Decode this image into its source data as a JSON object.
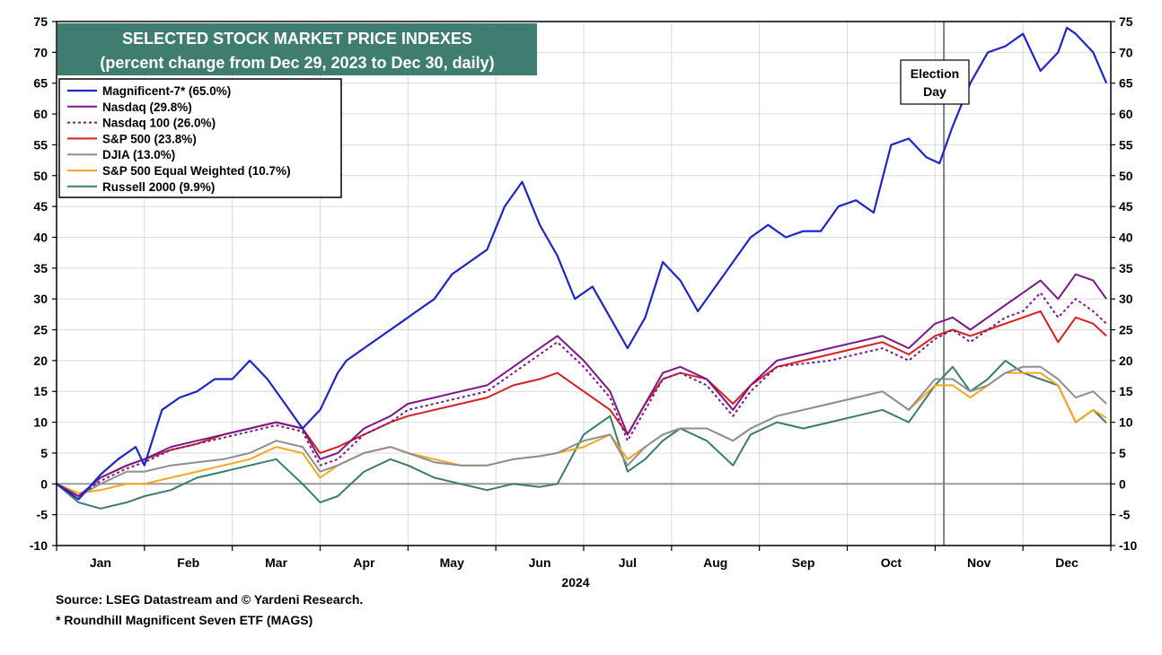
{
  "chart_data": {
    "type": "line",
    "title": "SELECTED STOCK MARKET PRICE INDEXES",
    "subtitle": "(percent change from Dec 29, 2023 to Dec 30, daily)",
    "xlabel": "2024",
    "ylabel": "",
    "ylim": [
      -10,
      75
    ],
    "yticks": [
      -10,
      -5,
      0,
      5,
      10,
      15,
      20,
      25,
      30,
      35,
      40,
      45,
      50,
      55,
      60,
      65,
      70,
      75
    ],
    "months": [
      "Jan",
      "Feb",
      "Mar",
      "Apr",
      "May",
      "Jun",
      "Jul",
      "Aug",
      "Sep",
      "Oct",
      "Nov",
      "Dec"
    ],
    "xdomain": [
      0,
      12
    ],
    "annotation": {
      "label_line1": "Election",
      "label_line2": "Day",
      "x": 10.1
    },
    "colors": {
      "title_bg": "#3f7d70",
      "grid": "#d9d9d9",
      "zero_line": "#9a9a9a",
      "election_line": "#808080"
    },
    "series": [
      {
        "name": "Magnificent-7* (65.0%)",
        "color": "#1f26c9",
        "width": 2.2,
        "dash": "",
        "x": [
          0,
          0.25,
          0.5,
          0.7,
          0.9,
          1.0,
          1.2,
          1.4,
          1.6,
          1.8,
          2.0,
          2.2,
          2.4,
          2.6,
          2.8,
          3.0,
          3.2,
          3.3,
          3.5,
          3.7,
          3.9,
          4.1,
          4.3,
          4.5,
          4.7,
          4.9,
          5.1,
          5.3,
          5.5,
          5.7,
          5.9,
          6.1,
          6.3,
          6.5,
          6.7,
          6.9,
          7.1,
          7.3,
          7.5,
          7.7,
          7.9,
          8.1,
          8.3,
          8.5,
          8.7,
          8.9,
          9.1,
          9.3,
          9.5,
          9.7,
          9.9,
          10.05,
          10.2,
          10.4,
          10.6,
          10.8,
          11.0,
          11.2,
          11.4,
          11.5,
          11.6,
          11.8,
          11.95
        ],
        "values": [
          0,
          -2.5,
          1.5,
          4,
          6,
          3,
          12,
          14,
          15,
          17,
          17,
          20,
          17,
          13,
          9,
          12,
          18,
          20,
          22,
          24,
          26,
          28,
          30,
          34,
          36,
          38,
          45,
          49,
          42,
          37,
          30,
          32,
          27,
          22,
          27,
          36,
          33,
          28,
          32,
          36,
          40,
          42,
          40,
          41,
          41,
          45,
          46,
          44,
          55,
          56,
          53,
          52,
          58,
          65,
          70,
          71,
          73,
          67,
          70,
          74,
          73,
          70,
          65
        ]
      },
      {
        "name": "Nasdaq (29.8%)",
        "color": "#7a1a86",
        "width": 2,
        "dash": "",
        "x": [
          0,
          0.25,
          0.5,
          0.8,
          1.0,
          1.3,
          1.6,
          1.9,
          2.2,
          2.5,
          2.8,
          3.0,
          3.2,
          3.5,
          3.8,
          4.0,
          4.3,
          4.6,
          4.9,
          5.2,
          5.5,
          5.7,
          6.0,
          6.3,
          6.5,
          6.7,
          6.9,
          7.1,
          7.4,
          7.7,
          7.9,
          8.2,
          8.5,
          8.8,
          9.1,
          9.4,
          9.7,
          10.0,
          10.2,
          10.4,
          10.6,
          10.8,
          11.0,
          11.2,
          11.4,
          11.6,
          11.8,
          11.95
        ],
        "values": [
          0,
          -2,
          1,
          3,
          4,
          6,
          7,
          8,
          9,
          10,
          9,
          4,
          5,
          9,
          11,
          13,
          14,
          15,
          16,
          19,
          22,
          24,
          20,
          15,
          8,
          13,
          18,
          19,
          17,
          12,
          16,
          20,
          21,
          22,
          23,
          24,
          22,
          26,
          27,
          25,
          27,
          29,
          31,
          33,
          30,
          34,
          33,
          30
        ]
      },
      {
        "name": "Nasdaq 100 (26.0%)",
        "color": "#7a1a86",
        "width": 2,
        "dash": "3,3",
        "x": [
          0,
          0.25,
          0.5,
          0.8,
          1.0,
          1.3,
          1.6,
          1.9,
          2.2,
          2.5,
          2.8,
          3.0,
          3.2,
          3.5,
          3.8,
          4.0,
          4.3,
          4.6,
          4.9,
          5.2,
          5.5,
          5.7,
          6.0,
          6.3,
          6.5,
          6.7,
          6.9,
          7.1,
          7.4,
          7.7,
          7.9,
          8.2,
          8.5,
          8.8,
          9.1,
          9.4,
          9.7,
          10.0,
          10.2,
          10.4,
          10.6,
          10.8,
          11.0,
          11.2,
          11.4,
          11.6,
          11.8,
          11.95
        ],
        "values": [
          0,
          -2,
          0.5,
          2.5,
          3.5,
          5.5,
          6.5,
          7.5,
          8.5,
          9.5,
          8.5,
          3,
          4,
          8,
          10,
          12,
          13,
          14,
          15,
          18,
          21,
          23,
          19,
          14,
          7,
          12,
          17,
          18,
          16,
          11,
          15,
          19,
          19.5,
          20,
          21,
          22,
          20,
          23.5,
          25,
          23,
          25,
          27,
          28,
          31,
          27,
          30,
          28,
          26
        ]
      },
      {
        "name": "S&P 500 (23.8%)",
        "color": "#d82020",
        "width": 2,
        "dash": "",
        "x": [
          0,
          0.25,
          0.5,
          0.8,
          1.0,
          1.3,
          1.6,
          1.9,
          2.2,
          2.5,
          2.8,
          3.0,
          3.2,
          3.5,
          3.8,
          4.0,
          4.3,
          4.6,
          4.9,
          5.2,
          5.5,
          5.7,
          6.0,
          6.3,
          6.5,
          6.7,
          6.9,
          7.1,
          7.4,
          7.7,
          7.9,
          8.2,
          8.5,
          8.8,
          9.1,
          9.4,
          9.7,
          10.0,
          10.2,
          10.4,
          10.6,
          10.8,
          11.0,
          11.2,
          11.4,
          11.6,
          11.8,
          11.95
        ],
        "values": [
          0,
          -2,
          1,
          3,
          4,
          5.5,
          6.5,
          8,
          9,
          10,
          9,
          5,
          6,
          8,
          10,
          11,
          12,
          13,
          14,
          16,
          17,
          18,
          15,
          12,
          8,
          13,
          17,
          18,
          17,
          13,
          16,
          19,
          20,
          21,
          22,
          23,
          21,
          24,
          25,
          24,
          25,
          26,
          27,
          28,
          23,
          27,
          26,
          24
        ]
      },
      {
        "name": "DJIA (13.0%)",
        "color": "#8f8f8f",
        "width": 2,
        "dash": "",
        "x": [
          0,
          0.25,
          0.5,
          0.8,
          1.0,
          1.3,
          1.6,
          1.9,
          2.2,
          2.5,
          2.8,
          3.0,
          3.2,
          3.5,
          3.8,
          4.0,
          4.3,
          4.6,
          4.9,
          5.2,
          5.5,
          5.7,
          6.0,
          6.3,
          6.5,
          6.7,
          6.9,
          7.1,
          7.4,
          7.7,
          7.9,
          8.2,
          8.5,
          8.8,
          9.1,
          9.4,
          9.7,
          10.0,
          10.2,
          10.4,
          10.6,
          10.8,
          11.0,
          11.2,
          11.4,
          11.6,
          11.8,
          11.95
        ],
        "values": [
          0,
          -2,
          0,
          2,
          2,
          3,
          3.5,
          4,
          5,
          7,
          6,
          2,
          3,
          5,
          6,
          5,
          3.5,
          3,
          3,
          4,
          4.5,
          5,
          7,
          8,
          3,
          6,
          8,
          9,
          9,
          7,
          9,
          11,
          12,
          13,
          14,
          15,
          12,
          17,
          17,
          15,
          16,
          18,
          19,
          19,
          17,
          14,
          15,
          13
        ]
      },
      {
        "name": "S&P 500 Equal Weighted (10.7%)",
        "color": "#f5a623",
        "width": 2,
        "dash": "",
        "x": [
          0,
          0.25,
          0.5,
          0.8,
          1.0,
          1.3,
          1.6,
          1.9,
          2.2,
          2.5,
          2.8,
          3.0,
          3.2,
          3.5,
          3.8,
          4.0,
          4.3,
          4.6,
          4.9,
          5.2,
          5.5,
          5.7,
          6.0,
          6.3,
          6.5,
          6.7,
          6.9,
          7.1,
          7.4,
          7.7,
          7.9,
          8.2,
          8.5,
          8.8,
          9.1,
          9.4,
          9.7,
          10.0,
          10.2,
          10.4,
          10.6,
          10.8,
          11.0,
          11.2,
          11.4,
          11.6,
          11.8,
          11.95
        ],
        "values": [
          0,
          -1.5,
          -1,
          0,
          0,
          1,
          2,
          3,
          4,
          6,
          5,
          1,
          3,
          5,
          6,
          5,
          4,
          3,
          3,
          4,
          4.5,
          5,
          6,
          8,
          4,
          6,
          8,
          9,
          9,
          7,
          9,
          11,
          12,
          13,
          14,
          15,
          12,
          16,
          16,
          14,
          16,
          18,
          18,
          18,
          16,
          10,
          12,
          10.7
        ]
      },
      {
        "name": "Russell 2000 (9.9%)",
        "color": "#3a7d6b",
        "width": 2,
        "dash": "",
        "x": [
          0,
          0.25,
          0.5,
          0.8,
          1.0,
          1.3,
          1.6,
          1.9,
          2.2,
          2.5,
          2.8,
          3.0,
          3.2,
          3.5,
          3.8,
          4.0,
          4.3,
          4.6,
          4.9,
          5.2,
          5.5,
          5.7,
          6.0,
          6.3,
          6.5,
          6.7,
          6.9,
          7.1,
          7.4,
          7.7,
          7.9,
          8.2,
          8.5,
          8.8,
          9.1,
          9.4,
          9.7,
          10.0,
          10.2,
          10.4,
          10.6,
          10.8,
          11.0,
          11.2,
          11.4,
          11.6,
          11.8,
          11.95
        ],
        "values": [
          0,
          -3,
          -4,
          -3,
          -2,
          -1,
          1,
          2,
          3,
          4,
          0,
          -3,
          -2,
          2,
          4,
          3,
          1,
          0,
          -1,
          0,
          -0.5,
          0,
          8,
          11,
          2,
          4,
          7,
          9,
          7,
          3,
          8,
          10,
          9,
          10,
          11,
          12,
          10,
          16,
          19,
          15,
          17,
          20,
          18,
          17,
          16,
          10,
          12,
          9.9
        ]
      }
    ]
  },
  "footer": {
    "source": "Source: LSEG Datastream and © Yardeni Research.",
    "footnote": "* Roundhill Magnificent Seven ETF (MAGS)"
  }
}
